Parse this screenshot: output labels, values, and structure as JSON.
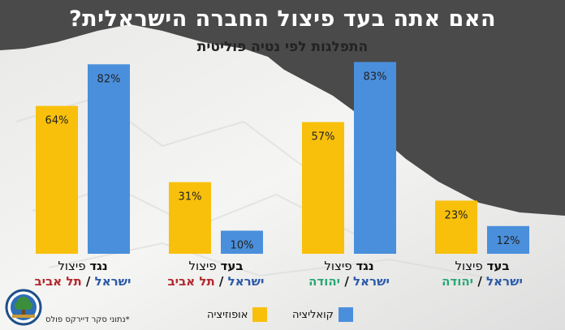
{
  "title": "האם אתה בעד פיצול החברה הישראלית?",
  "subtitle": "התפלגות לפי נטיה פוליטית",
  "colors": {
    "opposition": "#f8c00b",
    "coalition": "#4a8fdc"
  },
  "legend": {
    "opposition": "אופוזיציה",
    "coalition": "קואליציה"
  },
  "footnote": "*נתוני סקר דיירקס פולס",
  "chart_data": {
    "type": "bar",
    "categories": [
      {
        "stance": "נגד",
        "word": "פיצול",
        "place1": "ישראל",
        "place2": "תל אביב"
      },
      {
        "stance": "בעד",
        "word": "פיצול",
        "place1": "ישראל",
        "place2": "תל אביב"
      },
      {
        "stance": "נגד",
        "word": "פיצול",
        "place1": "ישראל",
        "place2": "יהודה"
      },
      {
        "stance": "בעד",
        "word": "פיצול",
        "place1": "ישראל",
        "place2": "יהודה"
      }
    ],
    "series": [
      {
        "name": "אופוזיציה",
        "values": [
          64,
          31,
          57,
          23
        ],
        "labels": [
          "64%",
          "31%",
          "57%",
          "23%"
        ]
      },
      {
        "name": "קואליציה",
        "values": [
          82,
          10,
          83,
          12
        ],
        "labels": [
          "82%",
          "10%",
          "83%",
          "12%"
        ]
      }
    ],
    "ylim": [
      0,
      100
    ],
    "grid": false,
    "legend_position": "bottom-center"
  }
}
